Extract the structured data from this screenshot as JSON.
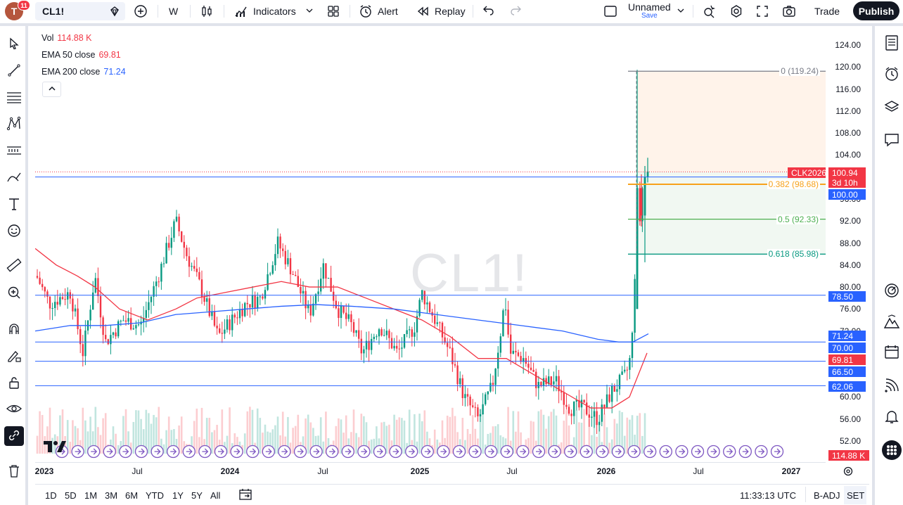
{
  "header": {
    "avatar_letter": "T",
    "notification_count": "11",
    "symbol": "CL1!",
    "interval": "W",
    "indicators_label": "Indicators",
    "alert_label": "Alert",
    "replay_label": "Replay",
    "layout_name": "Unnamed",
    "layout_status": "Save",
    "trade_label": "Trade",
    "publish_label": "Publish"
  },
  "legend": {
    "vol_label": "Vol",
    "vol_value": "114.88 K",
    "ema50_label": "EMA 50 close",
    "ema50_value": "69.81",
    "ema200_label": "EMA 200 close",
    "ema200_value": "71.24"
  },
  "watermark": "CL1!",
  "price_axis": {
    "ticks": [
      "124.00",
      "120.00",
      "116.00",
      "112.00",
      "108.00",
      "104.00",
      "96.00",
      "92.00",
      "88.00",
      "84.00",
      "80.00",
      "76.00",
      "72.00",
      "60.00",
      "56.00",
      "52.00"
    ],
    "tick_values": [
      124,
      120,
      116,
      112,
      108,
      104,
      96,
      92,
      88,
      84,
      80,
      76,
      72,
      60,
      56,
      52
    ],
    "current_symbol": "CLK2026",
    "current_price": "100.94",
    "countdown": "3d 10h",
    "line_100": "100.00",
    "line_7850": "78.50",
    "ema200": "71.24",
    "line_70": "70.00",
    "ema50": "69.81",
    "line_6650": "66.50",
    "line_6206": "62.06",
    "volume": "114.88 K"
  },
  "fibonacci": [
    {
      "label": "0 (119.24)",
      "level": 119.24,
      "color": "#787b86"
    },
    {
      "label": "0.382 (98.68)",
      "level": 98.68,
      "color": "#f7a21b"
    },
    {
      "label": "0.5 (92.33)",
      "level": 92.33,
      "color": "#4caf50"
    },
    {
      "label": "0.618 (85.98)",
      "level": 85.98,
      "color": "#089981"
    }
  ],
  "time_axis": [
    {
      "label": "2023",
      "bold": true
    },
    {
      "label": "Jul",
      "bold": false
    },
    {
      "label": "2024",
      "bold": true
    },
    {
      "label": "Jul",
      "bold": false
    },
    {
      "label": "2025",
      "bold": true
    },
    {
      "label": "Jul",
      "bold": false
    },
    {
      "label": "2026",
      "bold": true
    },
    {
      "label": "Jul",
      "bold": false
    },
    {
      "label": "2027",
      "bold": true
    }
  ],
  "bottom": {
    "ranges": [
      "1D",
      "5D",
      "1M",
      "3M",
      "6M",
      "YTD",
      "1Y",
      "5Y",
      "All"
    ],
    "time": "11:33:13 UTC",
    "adj": "B-ADJ",
    "session": "SET"
  },
  "colors": {
    "up": "#089981",
    "down": "#f23645",
    "ema50": "#f23645",
    "ema200": "#2962ff",
    "hline": "#2962ff"
  },
  "chart_data": {
    "type": "candlestick",
    "series": [
      {
        "name": "EMA 50 close",
        "color": "#f23645"
      },
      {
        "name": "EMA 200 close",
        "color": "#2962ff"
      }
    ],
    "horizontal_lines": [
      100.0,
      78.5,
      70.0,
      66.5,
      62.06
    ],
    "last_price": 100.94
  }
}
